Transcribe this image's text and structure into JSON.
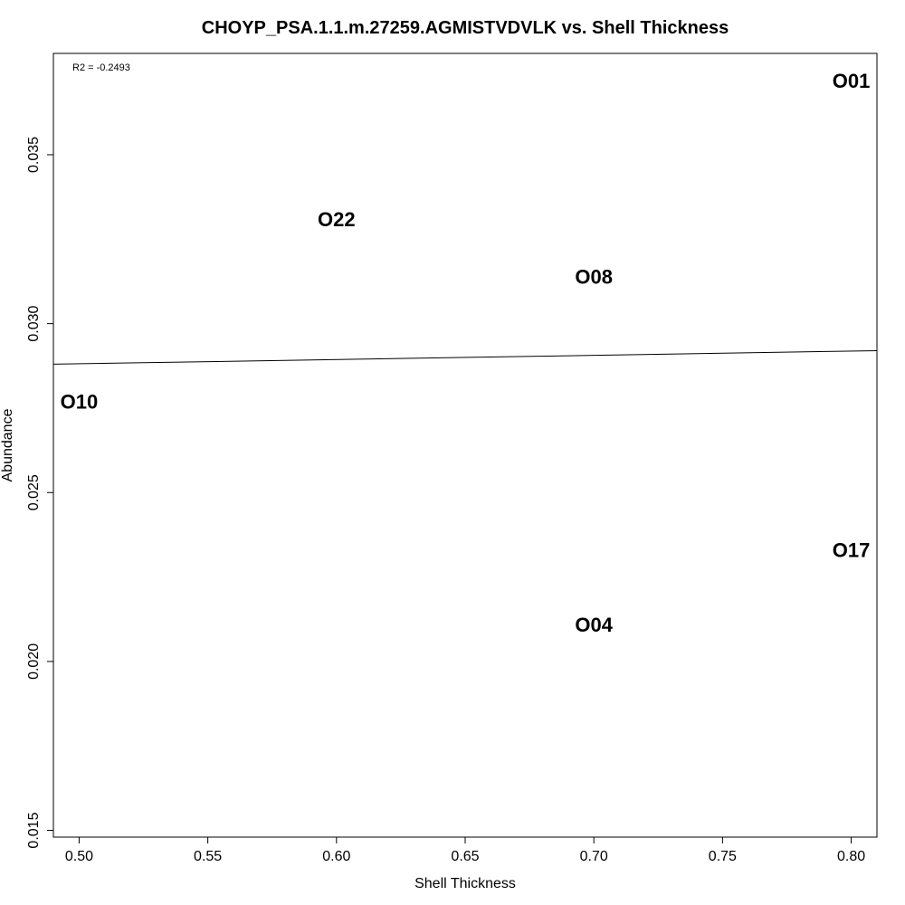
{
  "chart_data": {
    "type": "scatter",
    "title": "CHOYP_PSA.1.1.m.27259.AGMISTVDVLK vs. Shell Thickness",
    "xlabel": "Shell Thickness",
    "ylabel": "Abundance",
    "xlim": [
      0.49,
      0.81
    ],
    "ylim": [
      0.0148,
      0.038
    ],
    "x_ticks": [
      0.5,
      0.55,
      0.6,
      0.65,
      0.7,
      0.75,
      0.8
    ],
    "x_tick_labels": [
      "0.50",
      "0.55",
      "0.60",
      "0.65",
      "0.70",
      "0.75",
      "0.80"
    ],
    "y_ticks": [
      0.015,
      0.02,
      0.025,
      0.03,
      0.035
    ],
    "y_tick_labels": [
      "0.015",
      "0.020",
      "0.025",
      "0.030",
      "0.035"
    ],
    "annotation": "R2 = -0.2493",
    "points": [
      {
        "label": "O01",
        "x": 0.8,
        "y": 0.0372
      },
      {
        "label": "O22",
        "x": 0.6,
        "y": 0.0331
      },
      {
        "label": "O08",
        "x": 0.7,
        "y": 0.0314
      },
      {
        "label": "O10",
        "x": 0.5,
        "y": 0.0277
      },
      {
        "label": "O17",
        "x": 0.8,
        "y": 0.0233
      },
      {
        "label": "O04",
        "x": 0.7,
        "y": 0.0211
      }
    ],
    "regression_line": {
      "x": [
        0.49,
        0.81
      ],
      "y": [
        0.0288,
        0.0292
      ]
    },
    "grid": false,
    "marker": "text-labels"
  }
}
